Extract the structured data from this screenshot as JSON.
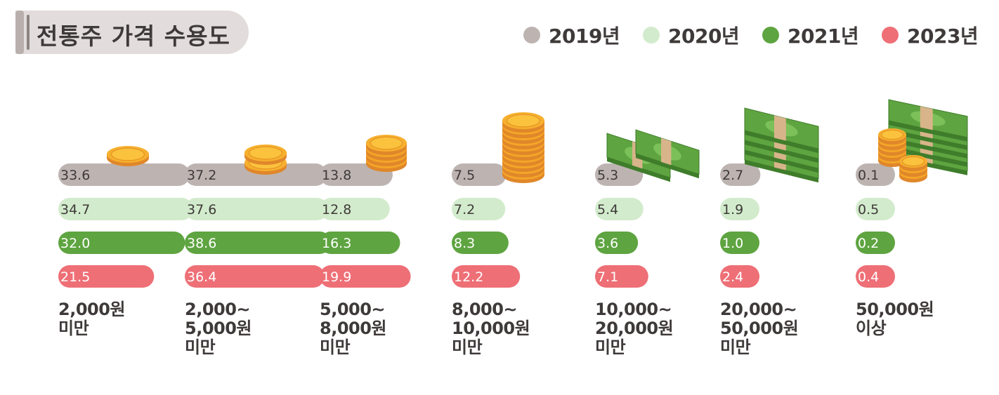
{
  "title": "전통주 가격 수용도",
  "colors": {
    "2019년": "#bdb4b2",
    "2020년": "#d2ebcc",
    "2021년": "#5ea440",
    "2023년": "#ee6f76"
  },
  "chart_data": {
    "type": "bar",
    "title": "전통주 가격 수용도",
    "categories": [
      [
        "2,000원",
        "미만"
      ],
      [
        "2,000~",
        "5,000원",
        "미만"
      ],
      [
        "5,000~",
        "8,000원",
        "미만"
      ],
      [
        "8,000~",
        "10,000원",
        "미만"
      ],
      [
        "10,000~",
        "20,000원",
        "미만"
      ],
      [
        "20,000~",
        "50,000원",
        "미만"
      ],
      [
        "50,000원",
        "이상"
      ]
    ],
    "series": [
      {
        "name": "2019년",
        "values": [
          "33.6",
          "37.2",
          "13.8",
          "7.5",
          "5.3",
          "2.7",
          "0.1"
        ]
      },
      {
        "name": "2020년",
        "values": [
          "34.7",
          "37.6",
          "12.8",
          "7.2",
          "5.4",
          "1.9",
          "0.5"
        ]
      },
      {
        "name": "2021년",
        "values": [
          "32.0",
          "38.6",
          "16.3",
          "8.3",
          "3.6",
          "1.0",
          "0.2"
        ]
      },
      {
        "name": "2023년",
        "values": [
          "21.5",
          "36.4",
          "19.9",
          "12.2",
          "7.1",
          "2.4",
          "0.4"
        ]
      }
    ],
    "legend_position": "top-right",
    "xlabel": "",
    "ylabel": ""
  },
  "illustrations": [
    "single-coin-icon",
    "double-coin-icon",
    "coin-stack-icon",
    "tall-coin-stack-icon",
    "banknote-bundle-icon",
    "banknote-stack-icon",
    "cash-and-coins-icon"
  ]
}
